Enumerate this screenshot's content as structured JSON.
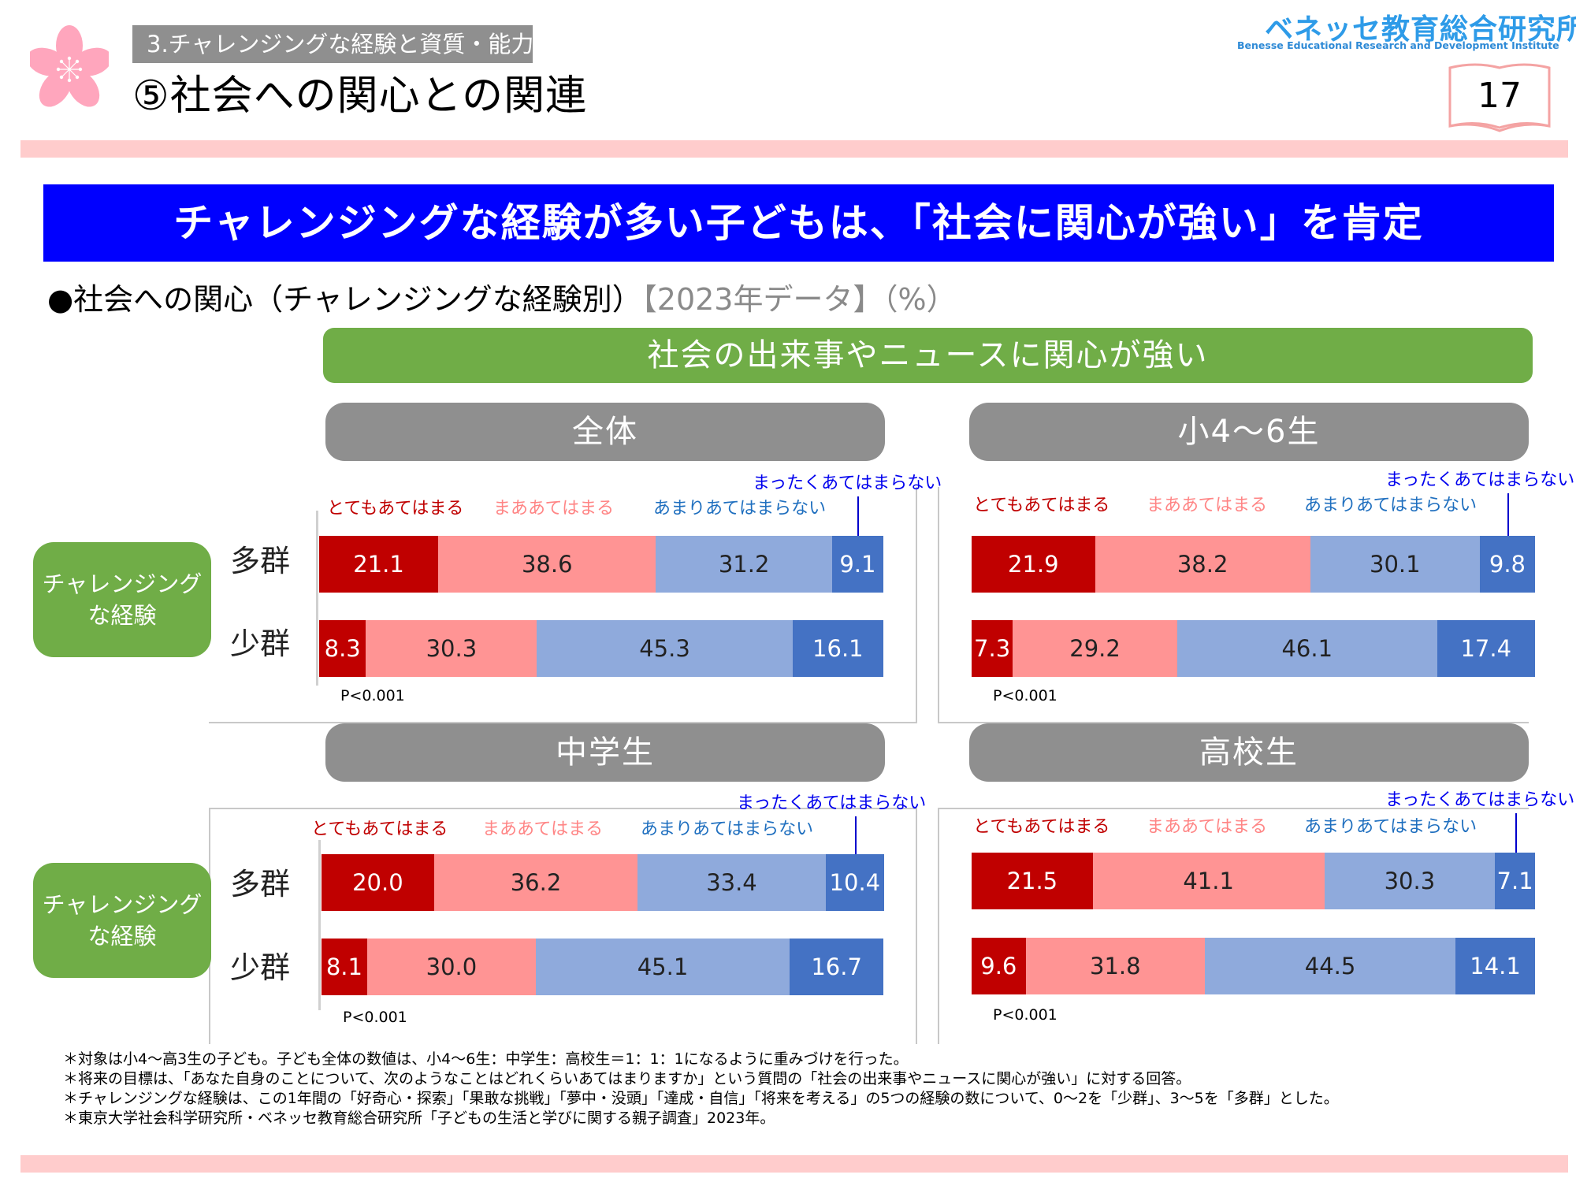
{
  "header": {
    "section_tag": "3.チャレンジングな経験と資質・能力",
    "page_title": "⑤社会への関心との関連",
    "logo_jp": "ベネッセ教育総合研究所",
    "logo_en": "Benesse  Educational Research and Development Institute",
    "page_number": "17"
  },
  "headline": "チャレンジングな経験が多い子どもは、「社会に関心が強い」を肯定",
  "subtitle": {
    "main": "●社会への関心（チャレンジングな経験別）",
    "meta": "【2023年データ】（%）"
  },
  "question_header": "社会の出来事やニュースに関心が強い",
  "group_box_label": [
    "チャレンジング",
    "な経験"
  ],
  "colors": {
    "very_true": "#c00000",
    "somewhat_true": "#ff9494",
    "not_very_true": "#8faadc",
    "not_at_all_true": "#4472c4",
    "headline_bg": "#0000ff",
    "question_bg": "#70ad47",
    "panel_header_bg": "#8f8f8f"
  },
  "chart_data": {
    "type": "bar",
    "orientation": "horizontal",
    "stacked": true,
    "unit": "%",
    "xlim": [
      0,
      100
    ],
    "title": "社会の出来事やニュースに関心が強い",
    "legend": [
      "とてもあてはまる",
      "まああてはまる",
      "あまりあてはまらない",
      "まったくあてはまらない"
    ],
    "legend_placement": "top",
    "panels": [
      {
        "title": "全体",
        "categories": [
          "多群",
          "少群"
        ],
        "series": [
          {
            "name": "とてもあてはまる",
            "values": [
              21.1,
              8.3
            ]
          },
          {
            "name": "まああてはまる",
            "values": [
              38.6,
              30.3
            ]
          },
          {
            "name": "あまりあてはまらない",
            "values": [
              31.2,
              45.3
            ]
          },
          {
            "name": "まったくあてはまらない",
            "values": [
              9.1,
              16.1
            ]
          }
        ],
        "annotation": "P<0.001"
      },
      {
        "title": "小4〜6生",
        "categories": [
          "多群",
          "少群"
        ],
        "series": [
          {
            "name": "とてもあてはまる",
            "values": [
              21.9,
              7.3
            ]
          },
          {
            "name": "まああてはまる",
            "values": [
              38.2,
              29.2
            ]
          },
          {
            "name": "あまりあてはまらない",
            "values": [
              30.1,
              46.1
            ]
          },
          {
            "name": "まったくあてはまらない",
            "values": [
              9.8,
              17.4
            ]
          }
        ],
        "annotation": "P<0.001"
      },
      {
        "title": "中学生",
        "categories": [
          "多群",
          "少群"
        ],
        "series": [
          {
            "name": "とてもあてはまる",
            "values": [
              20.0,
              8.1
            ]
          },
          {
            "name": "まああてはまる",
            "values": [
              36.2,
              30.0
            ]
          },
          {
            "name": "あまりあてはまらない",
            "values": [
              33.4,
              45.1
            ]
          },
          {
            "name": "まったくあてはまらない",
            "values": [
              10.4,
              16.7
            ]
          }
        ],
        "annotation": "P<0.001"
      },
      {
        "title": "高校生",
        "categories": [
          "多群",
          "少群"
        ],
        "series": [
          {
            "name": "とてもあてはまる",
            "values": [
              21.5,
              9.6
            ]
          },
          {
            "name": "まああてはまる",
            "values": [
              41.1,
              31.8
            ]
          },
          {
            "name": "あまりあてはまらない",
            "values": [
              30.3,
              44.5
            ]
          },
          {
            "name": "まったくあてはまらない",
            "values": [
              7.1,
              14.1
            ]
          }
        ],
        "annotation": "P<0.001"
      }
    ]
  },
  "notes": [
    "＊対象は小4〜高3生の子ども。子ども全体の数値は、小4〜6生：中学生：高校生＝1：1：1になるように重みづけを行った。",
    "＊将来の目標は、「あなた自身のことについて、次のようなことはどれくらいあてはまりますか」という質問の「社会の出来事やニュースに関心が強い」に対する回答。",
    "＊チャレンジングな経験は、この1年間の「好奇心・探索」「果敢な挑戦」「夢中・没頭」「達成・自信」「将来を考える」の5つの経験の数について、0〜2を「少群」、3〜5を「多群」とした。",
    "＊東京大学社会科学研究所・ベネッセ教育総合研究所「子どもの生活と学びに関する親子調査」2023年。"
  ]
}
